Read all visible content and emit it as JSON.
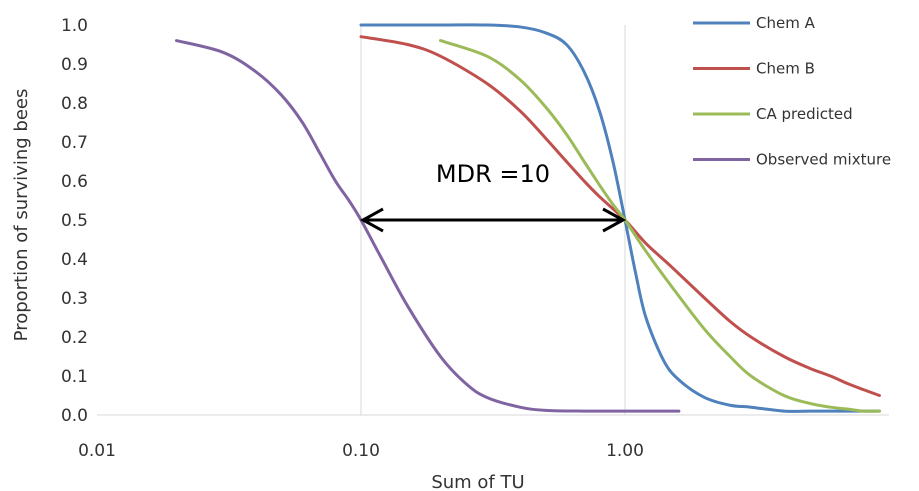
{
  "chart_data": {
    "type": "line",
    "title": "",
    "xlabel": "Sum of TU",
    "ylabel": "Proportion of surviving bees",
    "x_scale": "log",
    "xlim": [
      0.01,
      10
    ],
    "ylim": [
      0,
      1
    ],
    "x_ticks": [
      "0.01",
      "0.10",
      "1.00"
    ],
    "y_ticks": [
      "0.0",
      "0.1",
      "0.2",
      "0.3",
      "0.4",
      "0.5",
      "0.6",
      "0.7",
      "0.8",
      "0.9",
      "1.0"
    ],
    "grid": {
      "vertical_at": [
        0.1,
        1.0
      ],
      "horizontal": false
    },
    "legend_position": "right",
    "series": [
      {
        "name": "Chem A",
        "color": "#4f81bd",
        "x": [
          0.1,
          0.2,
          0.3,
          0.4,
          0.5,
          0.6,
          0.7,
          0.8,
          0.9,
          1.0,
          1.1,
          1.2,
          1.4,
          1.6,
          2.0,
          2.5,
          3.0,
          4.0,
          5.0,
          6.0,
          7.0,
          8.0,
          9.2
        ],
        "y": [
          1.0,
          1.0,
          1.0,
          0.995,
          0.98,
          0.95,
          0.88,
          0.78,
          0.65,
          0.5,
          0.36,
          0.25,
          0.14,
          0.09,
          0.045,
          0.025,
          0.02,
          0.01,
          0.01,
          0.01,
          0.01,
          0.01,
          0.01
        ]
      },
      {
        "name": "Chem B",
        "color": "#c0504d",
        "x": [
          0.1,
          0.15,
          0.2,
          0.3,
          0.4,
          0.5,
          0.6,
          0.7,
          0.8,
          1.0,
          1.2,
          1.5,
          2.0,
          2.5,
          3.0,
          4.0,
          5.0,
          6.0,
          7.0,
          8.0,
          9.2
        ],
        "y": [
          0.97,
          0.95,
          0.92,
          0.85,
          0.78,
          0.71,
          0.65,
          0.6,
          0.56,
          0.5,
          0.44,
          0.38,
          0.3,
          0.24,
          0.2,
          0.15,
          0.12,
          0.1,
          0.08,
          0.065,
          0.05
        ]
      },
      {
        "name": "CA predicted",
        "color": "#9bbb59",
        "x": [
          0.2,
          0.3,
          0.4,
          0.5,
          0.6,
          0.7,
          0.8,
          0.9,
          1.0,
          1.2,
          1.5,
          2.0,
          2.5,
          3.0,
          4.0,
          5.0,
          6.0,
          7.0,
          8.0,
          9.2
        ],
        "y": [
          0.96,
          0.92,
          0.86,
          0.79,
          0.72,
          0.65,
          0.59,
          0.54,
          0.5,
          0.42,
          0.33,
          0.22,
          0.15,
          0.1,
          0.05,
          0.03,
          0.02,
          0.015,
          0.01,
          0.01
        ]
      },
      {
        "name": "Observed mixture",
        "color": "#8064a2",
        "x": [
          0.02,
          0.03,
          0.04,
          0.05,
          0.06,
          0.07,
          0.08,
          0.09,
          0.1,
          0.12,
          0.15,
          0.2,
          0.25,
          0.3,
          0.4,
          0.5,
          0.7,
          1.0,
          1.6
        ],
        "y": [
          0.96,
          0.93,
          0.88,
          0.82,
          0.75,
          0.67,
          0.6,
          0.55,
          0.5,
          0.4,
          0.28,
          0.15,
          0.08,
          0.045,
          0.02,
          0.012,
          0.01,
          0.01,
          0.01
        ]
      }
    ],
    "annotations": [
      {
        "text": "MDR =10",
        "arrow_from_x": 0.1,
        "arrow_to_x": 1.0,
        "arrow_y": 0.5
      }
    ]
  }
}
